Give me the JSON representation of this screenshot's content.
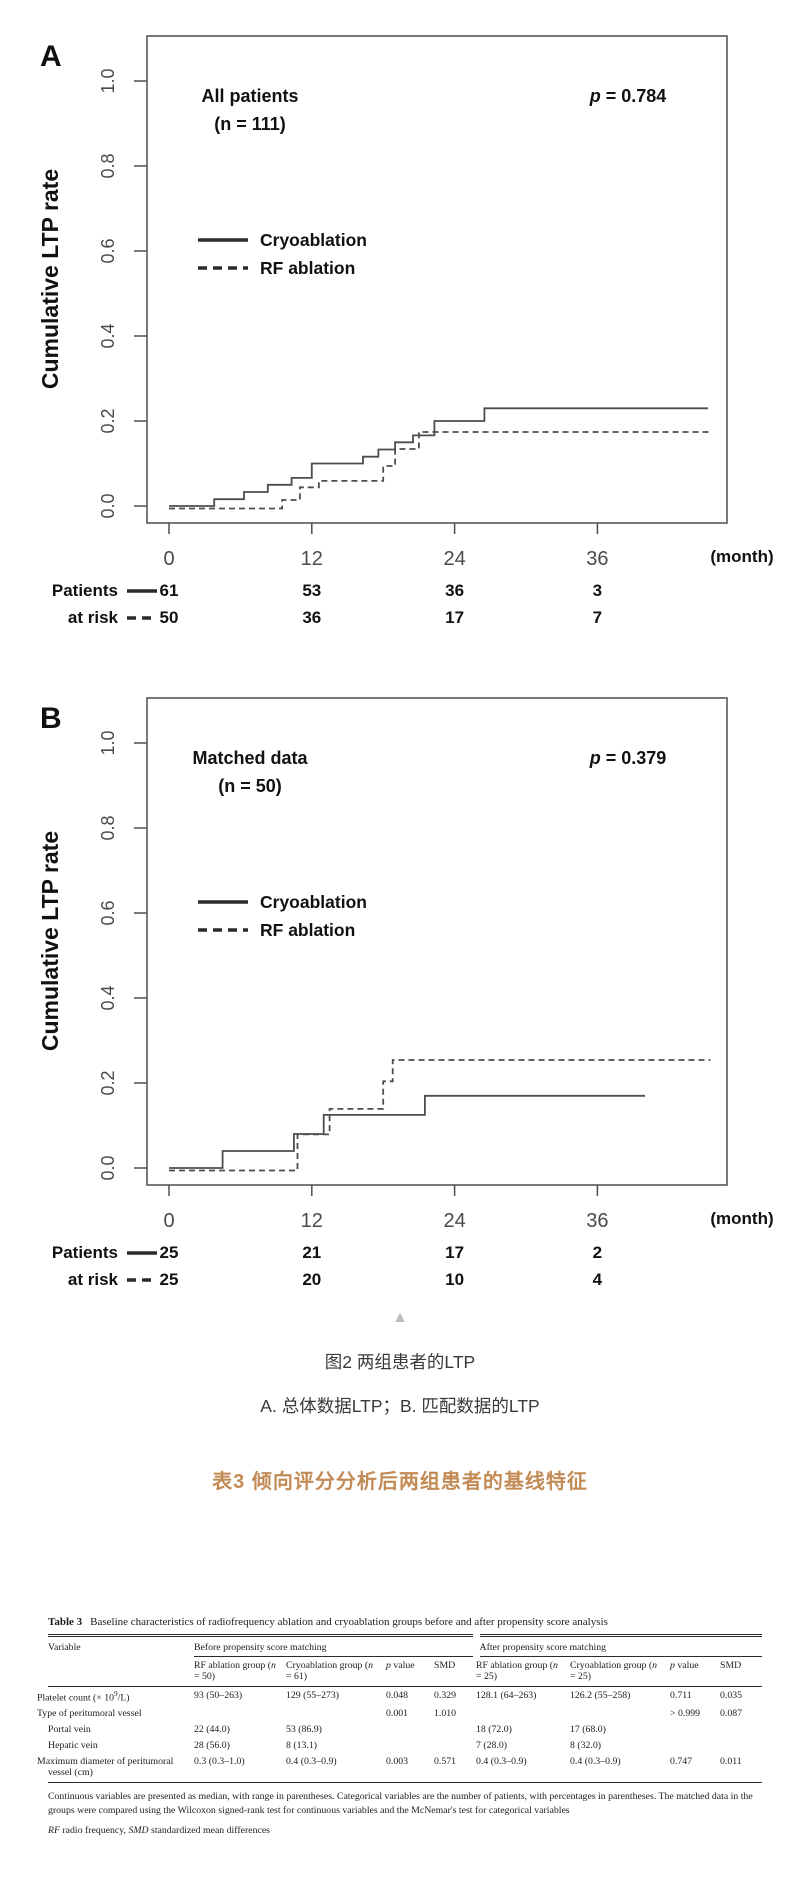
{
  "figure_caption": {
    "collapse_icon": "▲",
    "line1": "图2 两组患者的LTP",
    "line2": "A. 总体数据LTP；B. 匹配数据的LTP"
  },
  "table_section": {
    "heading": "表3 倾向评分分析后两组患者的基线特征",
    "heading_color": "#c28a55"
  },
  "chart_data": [
    {
      "type": "line",
      "subtype": "kaplan-meier-step",
      "panel_label": "A",
      "title": "All patients",
      "subtitle": "(n = 111)",
      "p_symbol": "p",
      "p_value_text": " = 0.784",
      "ylabel": "Cumulative LTP rate",
      "x_unit": "(month)",
      "x_ticks": [
        0,
        12,
        24,
        36
      ],
      "y_tick_labels": [
        "0.0",
        "0.2",
        "0.4",
        "0.6",
        "0.8",
        "1.0"
      ],
      "xlim": [
        0,
        47
      ],
      "ylim": [
        0,
        1.05
      ],
      "grid": false,
      "legend_position": "inside-left-middle",
      "at_risk_row_labels": [
        "Patients",
        "at risk"
      ],
      "series": [
        {
          "name": "Cryoablation",
          "line_style": "solid",
          "steps_month_rate": [
            [
              0,
              0
            ],
            [
              3.8,
              0.016
            ],
            [
              6.3,
              0.033
            ],
            [
              8.3,
              0.05
            ],
            [
              10.3,
              0.066
            ],
            [
              12,
              0.1
            ],
            [
              16.3,
              0.116
            ],
            [
              17.6,
              0.133
            ],
            [
              19,
              0.15
            ],
            [
              20.5,
              0.166
            ],
            [
              22.3,
              0.2
            ],
            [
              26.5,
              0.23
            ],
            [
              45.3,
              0.23
            ]
          ],
          "patients_at_risk": [
            61,
            53,
            36,
            3
          ]
        },
        {
          "name": "RF ablation",
          "line_style": "dashed",
          "steps_month_rate": [
            [
              0,
              0
            ],
            [
              9.5,
              0.02
            ],
            [
              11,
              0.05
            ],
            [
              12.6,
              0.065
            ],
            [
              18,
              0.1
            ],
            [
              19,
              0.14
            ],
            [
              21,
              0.18
            ],
            [
              45.5,
              0.18
            ]
          ],
          "patients_at_risk": [
            50,
            36,
            17,
            7
          ]
        }
      ]
    },
    {
      "type": "line",
      "subtype": "kaplan-meier-step",
      "panel_label": "B",
      "title": "Matched data",
      "subtitle": "(n = 50)",
      "p_symbol": "p",
      "p_value_text": " = 0.379",
      "ylabel": "Cumulative LTP rate",
      "x_unit": "(month)",
      "x_ticks": [
        0,
        12,
        24,
        36
      ],
      "y_tick_labels": [
        "0.0",
        "0.2",
        "0.4",
        "0.6",
        "0.8",
        "1.0"
      ],
      "xlim": [
        0,
        47
      ],
      "ylim": [
        0,
        1.05
      ],
      "grid": false,
      "legend_position": "inside-left-middle",
      "at_risk_row_labels": [
        "Patients",
        "at risk"
      ],
      "series": [
        {
          "name": "Cryoablation",
          "line_style": "solid",
          "steps_month_rate": [
            [
              0,
              0
            ],
            [
              4.5,
              0.04
            ],
            [
              10.5,
              0.08
            ],
            [
              13,
              0.125
            ],
            [
              21.5,
              0.17
            ],
            [
              40,
              0.17
            ]
          ],
          "patients_at_risk": [
            25,
            21,
            17,
            2
          ]
        },
        {
          "name": "RF ablation",
          "line_style": "dashed",
          "steps_month_rate": [
            [
              0,
              0
            ],
            [
              10.8,
              0.085
            ],
            [
              13.5,
              0.145
            ],
            [
              18,
              0.21
            ],
            [
              18.8,
              0.26
            ],
            [
              45.5,
              0.26
            ]
          ],
          "patients_at_risk": [
            25,
            20,
            10,
            4
          ]
        }
      ]
    }
  ],
  "table": {
    "title_label": "Table 3",
    "title_text": "Baseline characteristics of radiofrequency ablation and cryoablation groups before and after propensity score analysis",
    "columns": {
      "variable": "Variable",
      "before_group": "Before propensity score matching",
      "after_group": "After propensity score matching",
      "n_symbol": "n",
      "rf_before_pre": "RF ablation group (",
      "rf_before_post": " = 50)",
      "cryo_before_pre": "Cryoablation group (",
      "cryo_before_post": " = 61)",
      "rf_after_pre": "RF ablation group (",
      "rf_after_post": " = 25)",
      "cryo_after_pre": "Cryoablation group (",
      "cryo_after_post": " = 25)",
      "p_symbol": "p",
      "p_rest": " value",
      "smd": "SMD"
    },
    "rows": [
      {
        "label_parts": [
          "Platelet count (× 10",
          "9",
          "/L)"
        ],
        "cells": [
          "93 (50–263)",
          "129 (55–273)",
          "0.048",
          "0.329",
          "128.1 (64–263)",
          "126.2 (55–258)",
          "0.711",
          "0.035"
        ]
      },
      {
        "label": "Type of peritumoral vessel",
        "cells": [
          "",
          "",
          "0.001",
          "1.010",
          "",
          "",
          "> 0.999",
          "0.087"
        ]
      },
      {
        "label": "Portal vein",
        "indent": true,
        "cells": [
          "22 (44.0)",
          "53 (86.9)",
          "",
          "",
          "18 (72.0)",
          "17 (68.0)",
          "",
          ""
        ]
      },
      {
        "label": "Hepatic vein",
        "indent": true,
        "cells": [
          "28 (56.0)",
          "8 (13.1)",
          "",
          "",
          "7 (28.0)",
          "8 (32.0)",
          "",
          ""
        ]
      },
      {
        "label": "Maximum diameter of peritumoral vessel (cm)",
        "cells": [
          "0.3 (0.3–1.0)",
          "0.4 (0.3–0.9)",
          "0.003",
          "0.571",
          "0.4 (0.3–0.9)",
          "0.4 (0.3–0.9)",
          "0.747",
          "0.011"
        ]
      }
    ],
    "footnote1": "Continuous variables are presented as median, with range in parentheses. Categorical variables are the number of patients, with percentages in parentheses. The matched data in the groups were compared using the Wilcoxon signed-rank test for continuous variables and the McNemar's test for categorical variables",
    "footnote2": {
      "rf": "RF",
      "mid": " radio frequency, ",
      "smd": "SMD",
      "end": " standardized mean differences"
    }
  }
}
